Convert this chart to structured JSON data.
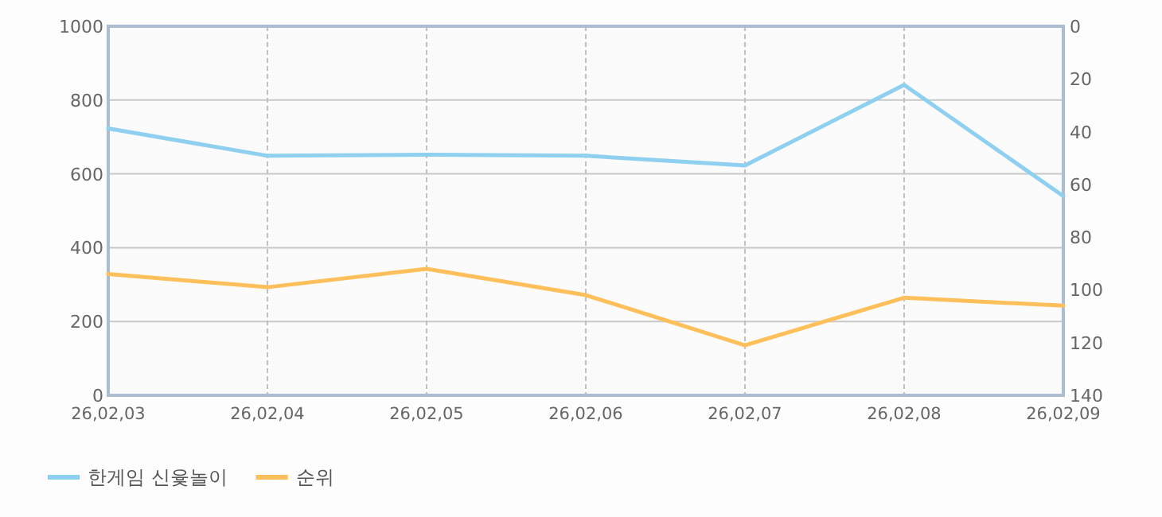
{
  "chart_data": {
    "type": "line",
    "categories": [
      "26,02,03",
      "26,02,04",
      "26,02,05",
      "26,02,06",
      "26,02,07",
      "26,02,08",
      "26,02,09"
    ],
    "series": [
      {
        "name": "한게임 신윷놀이",
        "color": "#8fd0f0",
        "values": [
          723,
          649,
          652,
          649,
          623,
          841,
          540
        ]
      },
      {
        "name": "순위",
        "color": "#ffbf5a",
        "axis": "y2",
        "values": [
          94,
          99,
          92,
          102,
          121,
          103,
          106
        ]
      }
    ],
    "ylim": [
      0,
      1000
    ],
    "yticks": [
      0,
      200,
      400,
      600,
      800,
      1000
    ],
    "y2lim": [
      140,
      0
    ],
    "y2ticks": [
      0,
      20,
      40,
      60,
      80,
      100,
      120,
      140
    ],
    "grid": true,
    "legend": "bottom left",
    "marker": "none",
    "line_style": "solid"
  }
}
